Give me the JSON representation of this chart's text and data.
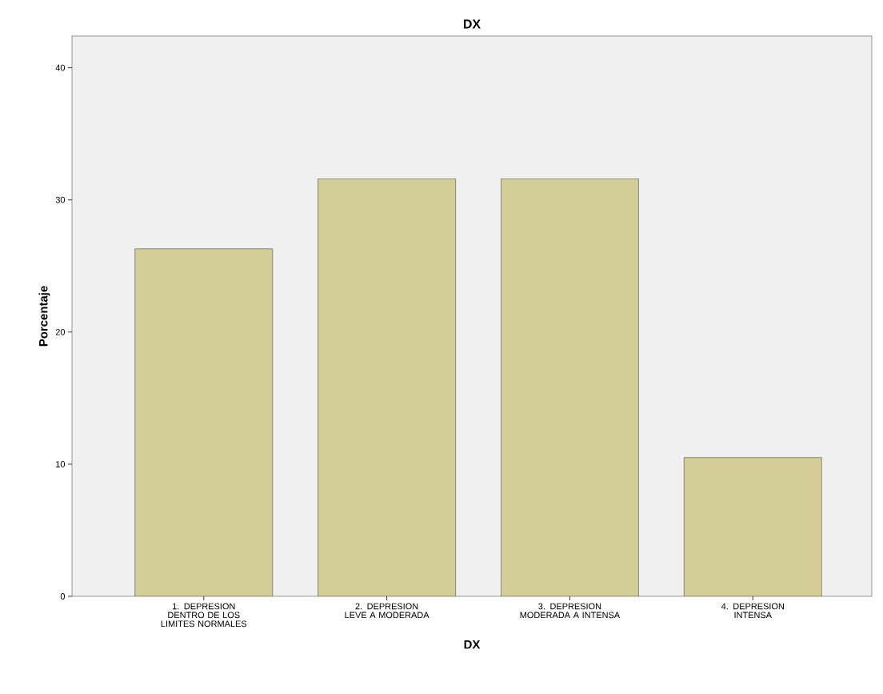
{
  "chart_data": {
    "type": "bar",
    "title": "DX",
    "xlabel": "DX",
    "ylabel": "Porcentaje",
    "categories": [
      "1. DEPRESION DENTRO DE LOS LIMITES NORMALES",
      "2. DEPRESION LEVE A MODERADA",
      "3. DEPRESION MODERADA A INTENSA",
      "4. DEPRESION INTENSA"
    ],
    "values": [
      26.3,
      31.6,
      31.6,
      10.5
    ],
    "color": "#d3ce97",
    "ylim": [
      0,
      42.4
    ],
    "yticks": [
      0,
      10,
      20,
      30,
      40
    ],
    "grid": false
  }
}
